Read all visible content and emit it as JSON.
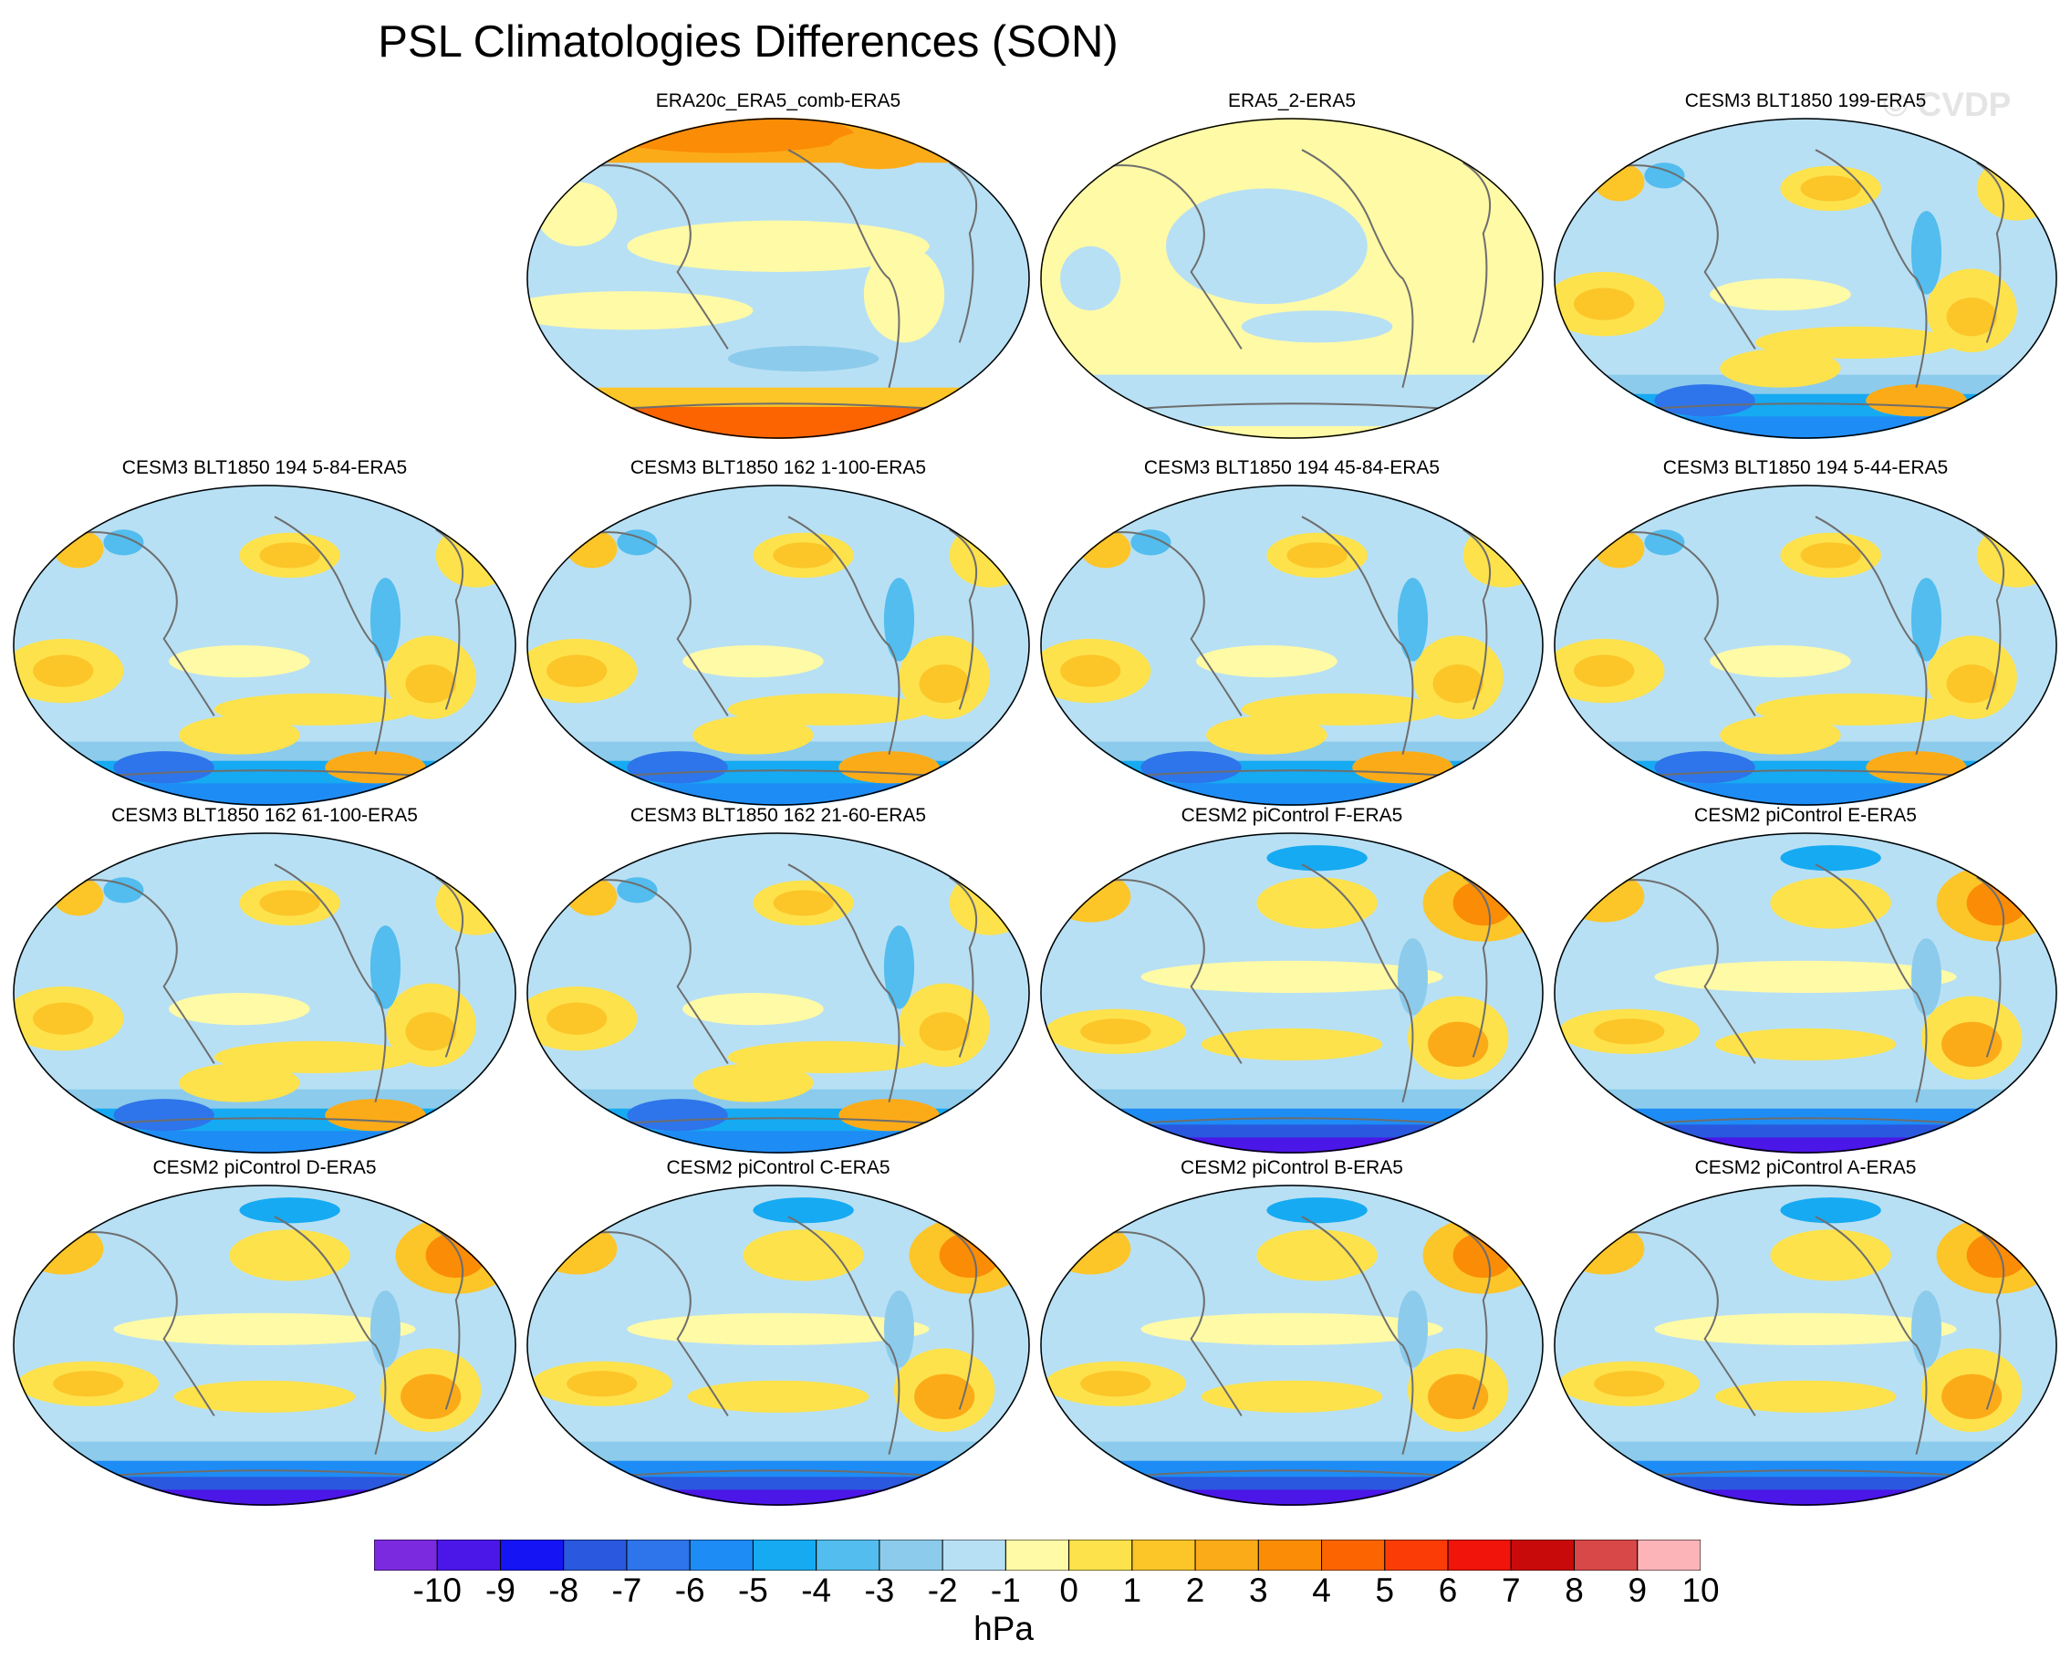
{
  "title": "PSL Climatologies Differences (SON)",
  "watermark": "© CVDP",
  "panels": [
    {
      "title": "ERA20c_ERA5_comb-ERA5",
      "style": "warmpole"
    },
    {
      "title": "ERA5_2-ERA5",
      "style": "flat"
    },
    {
      "title": "CESM3 BLT1850 199-ERA5",
      "style": "model3"
    },
    {
      "title": "CESM3 BLT1850 194 5-84-ERA5",
      "style": "model3"
    },
    {
      "title": "CESM3 BLT1850 162 1-100-ERA5",
      "style": "model3"
    },
    {
      "title": "CESM3 BLT1850 194 45-84-ERA5",
      "style": "model3"
    },
    {
      "title": "CESM3 BLT1850 194 5-44-ERA5",
      "style": "model3"
    },
    {
      "title": "CESM3 BLT1850 162 61-100-ERA5",
      "style": "model3"
    },
    {
      "title": "CESM3 BLT1850 162 21-60-ERA5",
      "style": "model3"
    },
    {
      "title": "CESM2 piControl F-ERA5",
      "style": "model2"
    },
    {
      "title": "CESM2 piControl E-ERA5",
      "style": "model2"
    },
    {
      "title": "CESM2 piControl D-ERA5",
      "style": "model2"
    },
    {
      "title": "CESM2 piControl C-ERA5",
      "style": "model2"
    },
    {
      "title": "CESM2 piControl B-ERA5",
      "style": "model2"
    },
    {
      "title": "CESM2 piControl A-ERA5",
      "style": "model2"
    }
  ],
  "colorbar": {
    "units": "hPa",
    "labels": [
      "-10",
      "-9",
      "-8",
      "-7",
      "-6",
      "-5",
      "-4",
      "-3",
      "-2",
      "-1",
      "0",
      "1",
      "2",
      "3",
      "4",
      "5",
      "6",
      "7",
      "8",
      "9",
      "10"
    ],
    "colors": [
      "#7b2ae0",
      "#4b16e8",
      "#1414f4",
      "#2a58de",
      "#2e74ea",
      "#1e8cf5",
      "#16aaf2",
      "#52bdee",
      "#8ccbeb",
      "#b8e0f4",
      "#fffaa6",
      "#fde24c",
      "#fcc528",
      "#fcab18",
      "#fb8c06",
      "#fb6400",
      "#fb3c06",
      "#f0140a",
      "#c80a0a",
      "#d84848",
      "#fcb4b8"
    ]
  }
}
